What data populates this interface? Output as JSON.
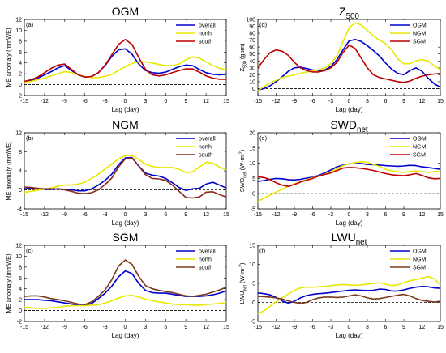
{
  "chart_data": [
    {
      "type": "line",
      "panel_label": "(a)",
      "title": "OGM",
      "xlabel": "Lag (day)",
      "ylabel": "ME anomaly (mmWE)",
      "xlim": [
        -15,
        15
      ],
      "ylim": [
        -2,
        12
      ],
      "xticks": [
        -15,
        -12,
        -9,
        -6,
        -3,
        0,
        3,
        6,
        9,
        12,
        15
      ],
      "yticks": [
        -2,
        0,
        2,
        4,
        6,
        8,
        10,
        12
      ],
      "zero_line": true,
      "legend_position": "top-right",
      "x": [
        -15,
        -14,
        -13,
        -12,
        -11,
        -10,
        -9,
        -8,
        -7,
        -6,
        -5,
        -4,
        -3,
        -2,
        -1,
        0,
        1,
        2,
        3,
        4,
        5,
        6,
        7,
        8,
        9,
        10,
        11,
        12,
        13,
        14,
        15
      ],
      "series": [
        {
          "name": "overall",
          "color": "#0000cc",
          "values": [
            0.5,
            0.8,
            1.2,
            1.8,
            2.4,
            3.1,
            3.5,
            2.6,
            1.8,
            1.4,
            1.5,
            2.2,
            3.5,
            5.2,
            6.4,
            6.6,
            5.6,
            3.8,
            2.6,
            2.2,
            2.1,
            2.3,
            2.8,
            3.3,
            3.6,
            3.5,
            2.8,
            2.2,
            1.9,
            1.8,
            1.9
          ]
        },
        {
          "name": "north",
          "color": "#e8e800",
          "values": [
            0.4,
            0.6,
            0.9,
            1.2,
            1.6,
            2.0,
            2.4,
            2.2,
            1.8,
            1.5,
            1.3,
            1.3,
            1.5,
            1.9,
            2.6,
            3.3,
            3.9,
            4.2,
            4.2,
            4.0,
            3.7,
            3.5,
            3.5,
            3.8,
            4.6,
            5.1,
            4.9,
            4.2,
            3.5,
            3.0,
            2.8
          ]
        },
        {
          "name": "south",
          "color": "#c00000",
          "values": [
            0.6,
            0.9,
            1.4,
            2.2,
            3.0,
            3.6,
            3.8,
            2.8,
            1.8,
            1.4,
            1.5,
            2.2,
            3.6,
            5.5,
            7.4,
            8.3,
            7.4,
            5.0,
            2.8,
            1.8,
            1.6,
            1.8,
            2.2,
            2.6,
            2.9,
            2.9,
            2.3,
            1.6,
            1.2,
            1.0,
            1.0
          ]
        }
      ]
    },
    {
      "type": "line",
      "panel_label": "(b)",
      "title": "NGM",
      "xlabel": "Lag (day)",
      "ylabel": "ME anomaly (mmWE)",
      "xlim": [
        -15,
        15
      ],
      "ylim": [
        -4,
        12
      ],
      "xticks": [
        -15,
        -12,
        -9,
        -6,
        -3,
        0,
        3,
        6,
        9,
        12,
        15
      ],
      "yticks": [
        -4,
        0,
        4,
        8,
        12
      ],
      "zero_line": true,
      "legend_position": "top-right",
      "x": [
        -15,
        -14,
        -13,
        -12,
        -11,
        -10,
        -9,
        -8,
        -7,
        -6,
        -5,
        -4,
        -3,
        -2,
        -1,
        0,
        1,
        2,
        3,
        4,
        5,
        6,
        7,
        8,
        9,
        10,
        11,
        12,
        13,
        14,
        15
      ],
      "series": [
        {
          "name": "overall",
          "color": "#0000cc",
          "values": [
            0.2,
            0.4,
            0.3,
            0.1,
            0.1,
            0.2,
            0.1,
            0.0,
            -0.2,
            -0.2,
            0.2,
            1.0,
            2.0,
            3.3,
            5.3,
            6.7,
            6.8,
            5.0,
            3.5,
            3.1,
            2.9,
            2.4,
            1.5,
            0.5,
            -0.1,
            0.2,
            0.3,
            1.2,
            1.6,
            1.0,
            0.4
          ]
        },
        {
          "name": "north",
          "color": "#e8e800",
          "values": [
            -0.5,
            -0.3,
            -0.1,
            0.2,
            0.4,
            0.8,
            1.0,
            1.0,
            1.2,
            1.6,
            2.4,
            3.3,
            4.4,
            5.4,
            6.5,
            7.2,
            7.2,
            6.4,
            5.4,
            4.9,
            4.7,
            4.7,
            4.7,
            4.3,
            3.6,
            3.8,
            4.8,
            5.8,
            5.6,
            4.8,
            4.2
          ]
        },
        {
          "name": "south",
          "color": "#8b2a1a",
          "values": [
            0.6,
            0.5,
            0.3,
            0.2,
            0.2,
            0.2,
            0.0,
            -0.3,
            -0.7,
            -0.8,
            -0.6,
            0.0,
            1.1,
            2.5,
            4.8,
            6.5,
            6.7,
            5.0,
            3.2,
            2.4,
            2.3,
            2.0,
            1.0,
            -0.3,
            -1.6,
            -1.7,
            -1.5,
            -0.5,
            -0.4,
            -1.0,
            -1.5
          ]
        }
      ]
    },
    {
      "type": "line",
      "panel_label": "(c)",
      "title": "SGM",
      "xlabel": "Lag (day)",
      "ylabel": "ME anomaly (mmWE)",
      "xlim": [
        -15,
        15
      ],
      "ylim": [
        -2,
        12
      ],
      "xticks": [
        -15,
        -12,
        -9,
        -6,
        -3,
        0,
        3,
        6,
        9,
        12,
        15
      ],
      "yticks": [
        -2,
        0,
        2,
        4,
        6,
        8,
        10,
        12
      ],
      "zero_line": true,
      "legend_position": "top-right",
      "x": [
        -15,
        -14,
        -13,
        -12,
        -11,
        -10,
        -9,
        -8,
        -7,
        -6,
        -5,
        -4,
        -3,
        -2,
        -1,
        0,
        1,
        2,
        3,
        4,
        5,
        6,
        7,
        8,
        9,
        10,
        11,
        12,
        13,
        14,
        15
      ],
      "series": [
        {
          "name": "overall",
          "color": "#0000cc",
          "values": [
            2.0,
            2.0,
            2.0,
            1.9,
            1.8,
            1.6,
            1.4,
            1.2,
            1.0,
            1.0,
            1.3,
            2.2,
            3.2,
            4.5,
            6.2,
            7.3,
            6.8,
            5.0,
            3.7,
            3.3,
            3.2,
            3.2,
            3.0,
            2.8,
            2.6,
            2.6,
            2.6,
            2.7,
            2.9,
            3.2,
            3.6
          ]
        },
        {
          "name": "north",
          "color": "#e8e800",
          "values": [
            0.6,
            0.5,
            0.4,
            0.4,
            0.5,
            0.6,
            0.8,
            0.9,
            0.9,
            0.9,
            1.0,
            1.1,
            1.4,
            1.8,
            2.3,
            2.7,
            2.8,
            2.5,
            2.1,
            1.8,
            1.6,
            1.4,
            1.2,
            1.1,
            1.1,
            1.0,
            1.0,
            1.1,
            1.2,
            1.3,
            1.5
          ]
        },
        {
          "name": "south",
          "color": "#7a3a1a",
          "values": [
            2.6,
            2.7,
            2.7,
            2.5,
            2.2,
            2.0,
            1.8,
            1.5,
            1.2,
            1.1,
            1.6,
            2.6,
            3.8,
            5.7,
            8.2,
            9.3,
            8.5,
            6.3,
            4.6,
            4.0,
            3.7,
            3.5,
            3.3,
            3.0,
            2.7,
            2.6,
            2.8,
            3.0,
            3.4,
            3.8,
            4.3
          ]
        }
      ]
    },
    {
      "type": "line",
      "panel_label": "(d)",
      "title": "Z",
      "title_sub": "500",
      "xlabel": "Lag (day)",
      "ylabel": "Z",
      "ylabel_sub": "500",
      "ylabel_unit": " (gpm)",
      "xlim": [
        -15,
        15
      ],
      "ylim": [
        -10,
        100
      ],
      "xticks": [
        -15,
        -12,
        -9,
        -6,
        -3,
        0,
        3,
        6,
        9,
        12,
        15
      ],
      "yticks": [
        0,
        10,
        20,
        30,
        40,
        50,
        60,
        70,
        80,
        90,
        100
      ],
      "zero_line": true,
      "legend_position": "top-right",
      "x": [
        -15,
        -14,
        -13,
        -12,
        -11,
        -10,
        -9,
        -8,
        -7,
        -6,
        -5,
        -4,
        -3,
        -2,
        -1,
        0,
        1,
        2,
        3,
        4,
        5,
        6,
        7,
        8,
        9,
        10,
        11,
        12,
        13,
        14,
        15
      ],
      "series": [
        {
          "name": "OGM",
          "color": "#0000cc",
          "values": [
            -2,
            0,
            4,
            10,
            17,
            25,
            30,
            31,
            29,
            27,
            26,
            27,
            32,
            42,
            56,
            69,
            71,
            68,
            62,
            55,
            47,
            37,
            28,
            22,
            20,
            26,
            30,
            25,
            15,
            7,
            2
          ]
        },
        {
          "name": "NGM",
          "color": "#e8e800",
          "values": [
            -3,
            3,
            8,
            12,
            16,
            18,
            20,
            22,
            24,
            25,
            27,
            30,
            36,
            48,
            68,
            88,
            95,
            92,
            84,
            76,
            70,
            65,
            56,
            43,
            36,
            36,
            40,
            42,
            40,
            33,
            27
          ]
        },
        {
          "name": "SGM",
          "color": "#c00000",
          "values": [
            30,
            42,
            52,
            56,
            54,
            48,
            38,
            30,
            26,
            24,
            24,
            26,
            30,
            38,
            52,
            63,
            58,
            44,
            30,
            20,
            16,
            14,
            12,
            10,
            9,
            11,
            15,
            18,
            20,
            21,
            22
          ]
        }
      ]
    },
    {
      "type": "line",
      "panel_label": "(e)",
      "title": "SWD",
      "title_sub": "net",
      "xlabel": "Lag (day)",
      "ylabel": "SWD",
      "ylabel_sub": "net",
      "ylabel_unit": " (W·m",
      "ylabel_sup": "-2",
      "ylabel_tail": ")",
      "xlim": [
        -15,
        15
      ],
      "ylim": [
        -5,
        20
      ],
      "xticks": [
        -15,
        -12,
        -9,
        -6,
        -3,
        0,
        3,
        6,
        9,
        12,
        15
      ],
      "yticks": [
        -5,
        0,
        5,
        10,
        15,
        20
      ],
      "zero_line": true,
      "legend_position": "top-right",
      "x": [
        -15,
        -14,
        -13,
        -12,
        -11,
        -10,
        -9,
        -8,
        -7,
        -6,
        -5,
        -4,
        -3,
        -2,
        -1,
        0,
        1,
        2,
        3,
        4,
        5,
        6,
        7,
        8,
        9,
        10,
        11,
        12,
        13,
        14,
        15
      ],
      "series": [
        {
          "name": "OGM",
          "color": "#0000cc",
          "values": [
            4.0,
            4.3,
            4.7,
            5.0,
            4.9,
            4.6,
            4.5,
            4.7,
            5.1,
            5.4,
            6.0,
            6.8,
            7.8,
            8.8,
            9.4,
            9.8,
            10.0,
            9.9,
            9.6,
            9.5,
            9.4,
            9.2,
            9.1,
            9.0,
            9.1,
            9.3,
            9.2,
            8.8,
            8.6,
            8.3,
            8.0
          ]
        },
        {
          "name": "NGM",
          "color": "#e8e800",
          "values": [
            -2.5,
            -1.5,
            -0.5,
            0.5,
            1.5,
            2.4,
            3.2,
            4.0,
            4.6,
            5.2,
            5.8,
            6.4,
            7.2,
            8.2,
            9.2,
            9.8,
            10.2,
            10.5,
            10.3,
            9.6,
            8.9,
            8.0,
            7.5,
            7.2,
            7.0,
            7.3,
            7.5,
            7.2,
            7.0,
            7.2,
            7.4
          ]
        },
        {
          "name": "SGM",
          "color": "#c00000",
          "values": [
            5.5,
            5.3,
            4.6,
            3.6,
            2.8,
            2.4,
            3.0,
            3.8,
            4.4,
            5.0,
            5.8,
            6.3,
            6.8,
            7.6,
            8.4,
            8.6,
            8.5,
            8.3,
            8.0,
            7.6,
            7.1,
            6.6,
            6.2,
            6.0,
            5.9,
            6.2,
            6.6,
            6.0,
            5.2,
            4.9,
            5.0
          ]
        }
      ]
    },
    {
      "type": "line",
      "panel_label": "(f)",
      "title": "LWU",
      "title_sub": "net",
      "xlabel": "Lag (day)",
      "ylabel": "LWU",
      "ylabel_sub": "net",
      "ylabel_unit": " (W·m",
      "ylabel_sup": "-2",
      "ylabel_tail": ")",
      "xlim": [
        -15,
        15
      ],
      "ylim": [
        -5,
        15
      ],
      "xticks": [
        -15,
        -12,
        -9,
        -6,
        -3,
        0,
        3,
        6,
        9,
        12,
        15
      ],
      "yticks": [
        -5,
        0,
        5,
        10,
        15
      ],
      "zero_line": true,
      "legend_position": "top-right",
      "x": [
        -15,
        -14,
        -13,
        -12,
        -11,
        -10,
        -9,
        -8,
        -7,
        -6,
        -5,
        -4,
        -3,
        -2,
        -1,
        0,
        1,
        2,
        3,
        4,
        5,
        6,
        7,
        8,
        9,
        10,
        11,
        12,
        13,
        14,
        15
      ],
      "series": [
        {
          "name": "OGM",
          "color": "#0000cc",
          "values": [
            2.5,
            2.3,
            2.0,
            1.3,
            0.4,
            -0.2,
            0.3,
            1.2,
            1.8,
            2.1,
            2.3,
            2.4,
            2.6,
            2.8,
            3.0,
            3.2,
            3.3,
            3.2,
            3.1,
            3.2,
            3.5,
            3.4,
            3.0,
            3.0,
            3.3,
            3.7,
            4.0,
            4.2,
            4.1,
            3.8,
            3.7
          ]
        },
        {
          "name": "NGM",
          "color": "#e8e800",
          "values": [
            -3.0,
            -2.2,
            -1.0,
            0.2,
            1.3,
            2.2,
            3.2,
            3.8,
            4.0,
            4.0,
            4.1,
            4.2,
            4.4,
            4.6,
            4.7,
            4.6,
            4.5,
            4.6,
            4.8,
            5.0,
            5.2,
            4.8,
            4.4,
            4.6,
            5.2,
            5.7,
            6.0,
            6.4,
            6.8,
            6.2,
            4.6
          ]
        },
        {
          "name": "SGM",
          "color": "#7a3a1a",
          "values": [
            1.6,
            1.5,
            1.4,
            1.2,
            0.9,
            0.4,
            0.0,
            -0.3,
            0.0,
            0.7,
            1.2,
            1.4,
            1.4,
            1.3,
            1.4,
            1.7,
            2.0,
            1.7,
            1.2,
            0.9,
            1.0,
            1.3,
            1.6,
            1.9,
            2.1,
            1.7,
            1.0,
            0.5,
            0.3,
            0.1,
            0.3
          ]
        }
      ]
    }
  ]
}
